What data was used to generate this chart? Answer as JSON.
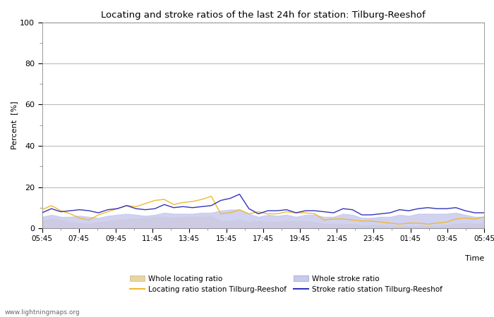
{
  "title": "Locating and stroke ratios of the last 24h for station: Tilburg-Reeshof",
  "xlabel": "Time",
  "ylabel": "Percent  [%]",
  "ylim": [
    0,
    100
  ],
  "yticks": [
    0,
    20,
    40,
    60,
    80,
    100
  ],
  "x_labels": [
    "05:45",
    "07:45",
    "09:45",
    "11:45",
    "13:45",
    "15:45",
    "17:45",
    "19:45",
    "21:45",
    "23:45",
    "01:45",
    "03:45",
    "05:45"
  ],
  "background_color": "#ffffff",
  "plot_bg_color": "#ffffff",
  "grid_color": "#bbbbbb",
  "watermark": "www.lightningmaps.org",
  "locating_ratio_color": "#f0b830",
  "stroke_ratio_color": "#3333bb",
  "whole_locating_fill": "#e8d5a0",
  "whole_stroke_fill": "#c8caee",
  "locating_line": [
    9.0,
    11.0,
    8.5,
    7.0,
    5.0,
    4.0,
    6.5,
    8.0,
    9.5,
    11.0,
    10.5,
    12.0,
    13.5,
    14.0,
    11.5,
    12.5,
    13.0,
    14.0,
    15.5,
    7.0,
    7.5,
    9.0,
    7.0,
    8.0,
    7.0,
    7.0,
    8.0,
    7.5,
    7.5,
    7.0,
    4.0,
    4.5,
    4.5,
    4.0,
    3.5,
    3.5,
    3.0,
    2.5,
    2.0,
    2.5,
    2.5,
    2.0,
    2.5,
    3.0,
    4.5,
    5.0,
    4.5,
    5.5
  ],
  "stroke_ratio_line": [
    7.5,
    9.5,
    8.0,
    8.5,
    9.0,
    8.5,
    7.5,
    9.0,
    9.5,
    11.0,
    9.5,
    9.0,
    9.5,
    11.5,
    10.0,
    10.5,
    10.0,
    10.5,
    11.0,
    13.5,
    14.5,
    16.5,
    9.5,
    7.0,
    8.5,
    8.5,
    9.0,
    7.5,
    8.5,
    8.5,
    8.0,
    7.5,
    9.5,
    9.0,
    6.5,
    6.5,
    7.0,
    7.5,
    9.0,
    8.5,
    9.5,
    10.0,
    9.5,
    9.5,
    10.0,
    8.5,
    7.5,
    7.5
  ],
  "whole_locating": [
    3.5,
    4.5,
    4.0,
    3.0,
    2.5,
    2.0,
    3.0,
    3.5,
    4.0,
    4.5,
    4.5,
    5.0,
    5.5,
    5.5,
    5.0,
    5.5,
    5.5,
    5.5,
    6.0,
    3.5,
    3.5,
    4.0,
    3.0,
    3.5,
    3.0,
    3.0,
    3.5,
    3.5,
    3.5,
    3.0,
    2.0,
    2.0,
    2.0,
    2.0,
    1.5,
    1.5,
    1.5,
    1.0,
    1.0,
    1.0,
    1.0,
    1.0,
    1.0,
    1.5,
    2.0,
    2.5,
    2.0,
    2.5
  ],
  "whole_stroke": [
    5.5,
    6.5,
    5.5,
    5.5,
    6.0,
    5.5,
    5.0,
    6.0,
    6.5,
    7.0,
    6.5,
    6.0,
    6.5,
    7.5,
    7.0,
    7.0,
    7.0,
    7.5,
    7.5,
    8.5,
    9.0,
    9.0,
    7.0,
    5.5,
    6.5,
    6.0,
    6.5,
    5.5,
    6.5,
    6.5,
    5.5,
    5.5,
    7.0,
    6.5,
    5.0,
    5.0,
    5.5,
    5.5,
    6.5,
    6.0,
    7.0,
    7.0,
    7.0,
    7.0,
    7.5,
    6.5,
    5.5,
    5.5
  ],
  "legend_labels": [
    "Whole locating ratio",
    "Locating ratio station Tilburg-Reeshof",
    "Whole stroke ratio",
    "Stroke ratio station Tilburg-Reeshof"
  ],
  "minor_tick_color": "#888888",
  "spine_color": "#888888"
}
